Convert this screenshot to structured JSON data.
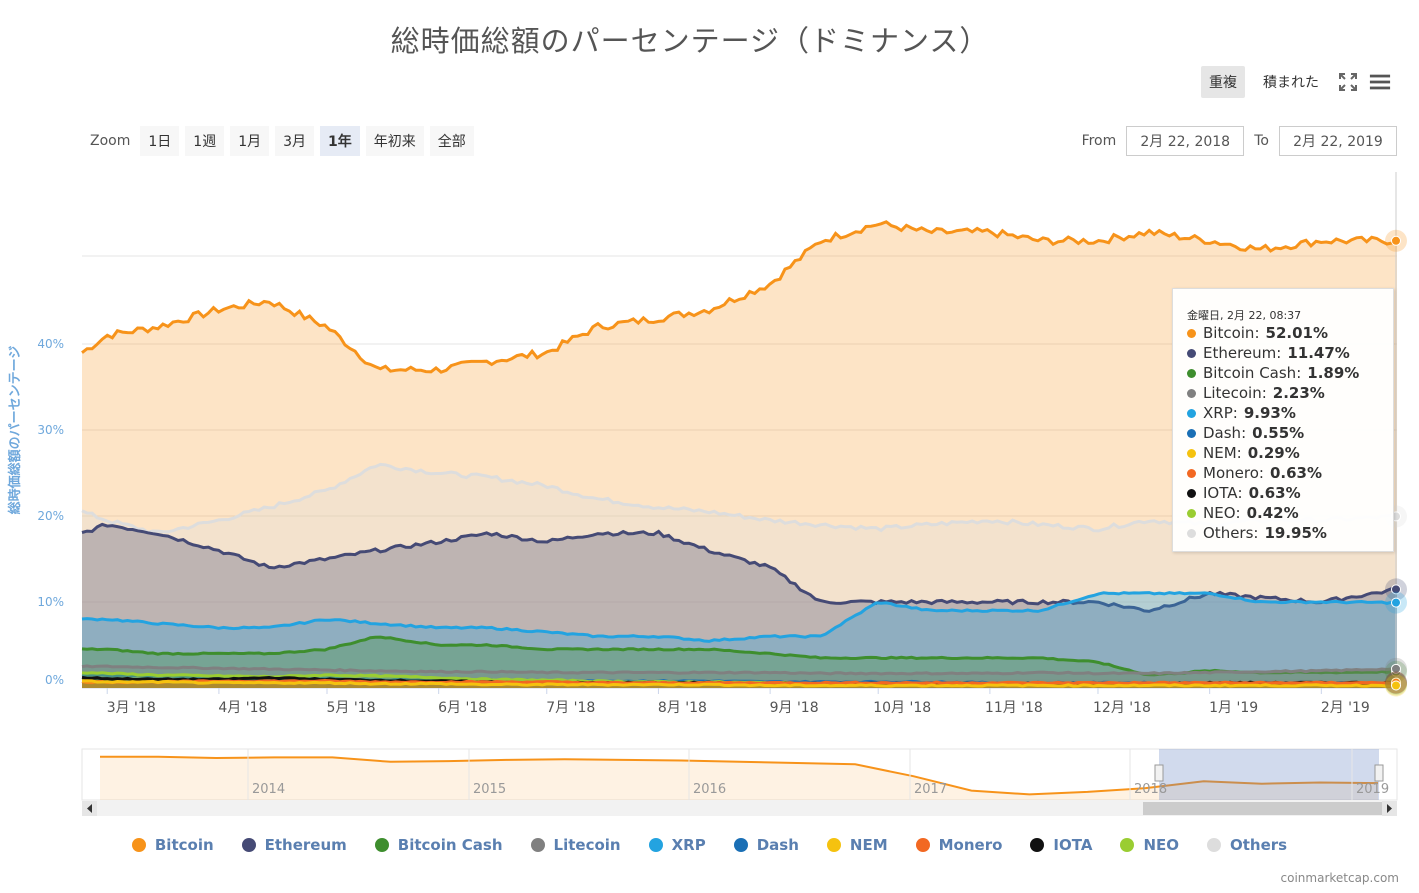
{
  "title": "総時価総額のパーセンテージ（ドミナンス）",
  "toolbar": {
    "overlap": "重複",
    "stacked": "積まれた"
  },
  "zoom": {
    "label": "Zoom",
    "buttons": [
      "1日",
      "1週",
      "1月",
      "3月",
      "1年",
      "年初来",
      "全部"
    ],
    "selected": "1年"
  },
  "range": {
    "from_label": "From",
    "from": "2月 22, 2018",
    "to_label": "To",
    "to": "2月 22, 2019"
  },
  "tooltip": {
    "header": "金曜日, 2月 22, 08:37",
    "rows": [
      {
        "name": "Bitcoin",
        "value": "52.01%",
        "color": "#f7931a"
      },
      {
        "name": "Ethereum",
        "value": "11.47%",
        "color": "#454a75"
      },
      {
        "name": "Bitcoin Cash",
        "value": "1.89%",
        "color": "#3e8e2e"
      },
      {
        "name": "Litecoin",
        "value": "2.23%",
        "color": "#808080"
      },
      {
        "name": "XRP",
        "value": "9.93%",
        "color": "#23a3e0"
      },
      {
        "name": "Dash",
        "value": "0.55%",
        "color": "#1a6fb5"
      },
      {
        "name": "NEM",
        "value": "0.29%",
        "color": "#f5c20f"
      },
      {
        "name": "Monero",
        "value": "0.63%",
        "color": "#f26822"
      },
      {
        "name": "IOTA",
        "value": "0.63%",
        "color": "#111111"
      },
      {
        "name": "NEO",
        "value": "0.42%",
        "color": "#9acd32"
      },
      {
        "name": "Others",
        "value": "19.95%",
        "color": "#dddddd"
      }
    ]
  },
  "credit": "coinmarketcap.com",
  "chart_data": {
    "type": "area",
    "ylabel": "総時価総額のパーセンテージ",
    "ylim": [
      0,
      60
    ],
    "yticks": [
      "0%",
      "10%",
      "20%",
      "30%",
      "40%"
    ],
    "x_tick_labels": [
      "3月 '18",
      "4月 '18",
      "5月 '18",
      "6月 '18",
      "7月 '18",
      "8月 '18",
      "9月 '18",
      "10月 '18",
      "11月 '18",
      "12月 '18",
      "1月 '19",
      "2月 '19"
    ],
    "x": [
      "2018-02-22",
      "2018-03-01",
      "2018-03-15",
      "2018-04-01",
      "2018-04-15",
      "2018-05-01",
      "2018-05-15",
      "2018-06-01",
      "2018-06-15",
      "2018-07-01",
      "2018-07-15",
      "2018-08-01",
      "2018-08-15",
      "2018-09-01",
      "2018-09-15",
      "2018-10-01",
      "2018-10-15",
      "2018-11-01",
      "2018-11-15",
      "2018-12-01",
      "2018-12-15",
      "2019-01-01",
      "2019-01-15",
      "2019-02-01",
      "2019-02-22"
    ],
    "series": [
      {
        "name": "Bitcoin",
        "color": "#f7931a",
        "values": [
          39,
          41,
          42,
          44,
          45,
          42,
          37,
          37,
          38,
          39,
          42,
          43,
          44,
          47,
          52,
          54,
          53,
          53,
          52,
          52,
          53,
          52,
          51,
          52,
          52
        ]
      },
      {
        "name": "Others",
        "color": "#dddddd",
        "values": [
          20.5,
          19.5,
          18,
          19.5,
          21,
          23,
          26,
          25,
          24.5,
          23.5,
          22,
          21,
          20.5,
          19.5,
          19,
          18.5,
          19,
          19.5,
          19,
          18.5,
          19.5,
          19,
          19.5,
          19.5,
          19.95
        ]
      },
      {
        "name": "Ethereum",
        "color": "#454a75",
        "values": [
          18,
          19,
          18,
          16,
          14,
          15,
          16,
          17,
          18,
          17,
          18,
          18,
          16,
          14,
          10,
          10,
          10,
          10,
          10,
          10,
          9,
          11,
          10.5,
          10,
          11.47
        ]
      },
      {
        "name": "XRP",
        "color": "#23a3e0",
        "values": [
          8,
          8,
          7.5,
          7,
          7,
          8,
          7.5,
          7,
          7,
          6.5,
          6,
          6,
          5.5,
          6,
          6,
          10,
          9,
          9,
          9,
          11,
          11,
          11,
          10,
          10,
          9.93
        ]
      },
      {
        "name": "Bitcoin Cash",
        "color": "#3e8e2e",
        "values": [
          4.5,
          4.5,
          4,
          4,
          4,
          4.5,
          6,
          5,
          5,
          4.5,
          4.5,
          4.5,
          4.5,
          4,
          3.5,
          3.5,
          3.5,
          3.5,
          3.5,
          3,
          1.5,
          2,
          1.8,
          1.8,
          1.89
        ]
      },
      {
        "name": "Litecoin",
        "color": "#808080",
        "values": [
          2.5,
          2.5,
          2.4,
          2.3,
          2.2,
          2.1,
          2,
          1.9,
          1.9,
          1.8,
          1.8,
          1.8,
          1.8,
          1.8,
          1.7,
          1.7,
          1.7,
          1.7,
          1.8,
          1.7,
          1.7,
          1.8,
          1.9,
          2,
          2.23
        ]
      },
      {
        "name": "Dash",
        "color": "#1a6fb5",
        "values": [
          1.5,
          1.5,
          1.4,
          1.3,
          1.2,
          1.1,
          1,
          0.9,
          0.9,
          0.8,
          0.8,
          0.8,
          0.8,
          0.7,
          0.7,
          0.7,
          0.7,
          0.6,
          0.6,
          0.6,
          0.6,
          0.6,
          0.6,
          0.6,
          0.55
        ]
      },
      {
        "name": "NEO",
        "color": "#9acd32",
        "values": [
          1.8,
          1.7,
          1.5,
          1.4,
          1.3,
          1.5,
          1.4,
          1.2,
          1,
          0.9,
          0.8,
          0.7,
          0.7,
          0.6,
          0.5,
          0.5,
          0.5,
          0.5,
          0.5,
          0.5,
          0.4,
          0.5,
          0.4,
          0.4,
          0.42
        ]
      },
      {
        "name": "IOTA",
        "color": "#111111",
        "values": [
          1.2,
          1.1,
          1,
          1,
          1.2,
          1,
          0.9,
          0.8,
          0.7,
          0.6,
          0.6,
          0.6,
          0.6,
          0.5,
          0.5,
          0.5,
          0.5,
          0.5,
          0.5,
          0.5,
          0.5,
          0.6,
          0.6,
          0.6,
          0.63
        ]
      },
      {
        "name": "Monero",
        "color": "#f26822",
        "values": [
          0.7,
          0.7,
          0.7,
          0.8,
          0.8,
          0.8,
          0.7,
          0.7,
          0.7,
          0.7,
          0.6,
          0.6,
          0.6,
          0.6,
          0.6,
          0.6,
          0.6,
          0.6,
          0.6,
          0.6,
          0.6,
          0.6,
          0.6,
          0.6,
          0.63
        ]
      },
      {
        "name": "NEM",
        "color": "#f5c20f",
        "values": [
          0.8,
          0.7,
          0.7,
          0.6,
          0.6,
          0.6,
          0.5,
          0.5,
          0.4,
          0.4,
          0.4,
          0.4,
          0.4,
          0.3,
          0.3,
          0.3,
          0.3,
          0.3,
          0.3,
          0.3,
          0.3,
          0.3,
          0.3,
          0.3,
          0.29
        ]
      }
    ],
    "navigator": {
      "year_labels": [
        "2014",
        "2015",
        "2016",
        "2017",
        "2018",
        "2019"
      ],
      "bitcoin_values": [
        94,
        94,
        92,
        93,
        93,
        86,
        87,
        89,
        90,
        89,
        88,
        86,
        84,
        82,
        63,
        40,
        34,
        38,
        44,
        55,
        51,
        53,
        52
      ]
    }
  }
}
